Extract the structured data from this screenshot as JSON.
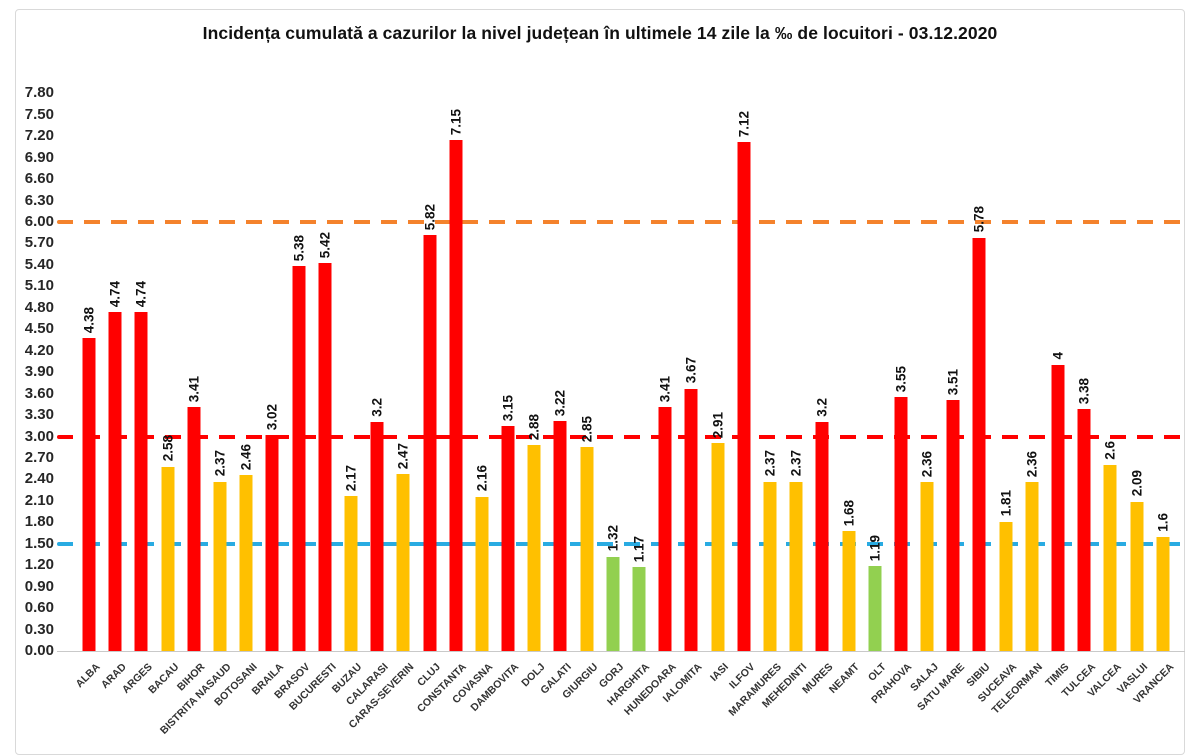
{
  "title": "Incidența cumulată a cazurilor la nivel județean în ultimele 14 zile la ‰ de locuitori - 03.12.2020",
  "colors": {
    "red": "#FF0000",
    "yellow": "#FFC000",
    "green": "#92D050",
    "orange_line": "#F4822C",
    "red_line": "#FF0000",
    "blue_line": "#29ABE2",
    "axis_text": "#262626",
    "frame_border": "#d9d9d9"
  },
  "chart_data": {
    "type": "bar",
    "title": "Incidența cumulată a cazurilor la nivel județean în ultimele 14 zile la ‰ de locuitori - 03.12.2020",
    "xlabel": "",
    "ylabel": "",
    "ylim": [
      0,
      7.8
    ],
    "ytick_step": 0.3,
    "grid": "off",
    "legend": "none",
    "yticks": [
      "7.80",
      "7.50",
      "7.20",
      "6.90",
      "6.60",
      "6.30",
      "6.00",
      "5.70",
      "5.40",
      "5.10",
      "4.80",
      "4.50",
      "4.20",
      "3.90",
      "3.60",
      "3.30",
      "3.00",
      "2.70",
      "2.40",
      "2.10",
      "1.80",
      "1.50",
      "1.20",
      "0.90",
      "0.60",
      "0.30",
      "0.00"
    ],
    "categories": [
      "ALBA",
      "ARAD",
      "ARGES",
      "BACAU",
      "BIHOR",
      "BISTRITA NASAUD",
      "BOTOSANI",
      "BRAILA",
      "BRASOV",
      "BUCURESTI",
      "BUZAU",
      "CALARASI",
      "CARAS-SEVERIN",
      "CLUJ",
      "CONSTANTA",
      "COVASNA",
      "DAMBOVITA",
      "DOLJ",
      "GALATI",
      "GIURGIU",
      "GORJ",
      "HARGHITA",
      "HUNEDOARA",
      "IALOMITA",
      "IASI",
      "ILFOV",
      "MARAMURES",
      "MEHEDINTI",
      "MURES",
      "NEAMT",
      "OLT",
      "PRAHOVA",
      "SALAJ",
      "SATU MARE",
      "SIBIU",
      "SUCEAVA",
      "TELEORMAN",
      "TIMIS",
      "TULCEA",
      "VALCEA",
      "VASLUI",
      "VRANCEA"
    ],
    "values": [
      4.38,
      4.74,
      4.74,
      2.58,
      3.41,
      2.37,
      2.46,
      3.02,
      5.38,
      5.42,
      2.17,
      3.2,
      2.47,
      5.82,
      7.15,
      2.16,
      3.15,
      2.88,
      3.22,
      2.85,
      1.32,
      1.17,
      3.41,
      3.67,
      2.91,
      7.12,
      2.37,
      2.37,
      3.2,
      1.68,
      1.19,
      3.55,
      2.36,
      3.51,
      5.78,
      1.81,
      2.36,
      4,
      3.38,
      2.6,
      2.09,
      1.6
    ],
    "value_labels": [
      "4.38",
      "4.74",
      "4.74",
      "2.58",
      "3.41",
      "2.37",
      "2.46",
      "3.02",
      "5.38",
      "5.42",
      "2.17",
      "3.2",
      "2.47",
      "5.82",
      "7.15",
      "2.16",
      "3.15",
      "2.88",
      "3.22",
      "2.85",
      "1.32",
      "1.17",
      "3.41",
      "3.67",
      "2.91",
      "7.12",
      "2.37",
      "2.37",
      "3.2",
      "1.68",
      "1.19",
      "3.55",
      "2.36",
      "3.51",
      "5.78",
      "1.81",
      "2.36",
      "4",
      "3.38",
      "2.6",
      "2.09",
      "1.6"
    ],
    "bar_levels": [
      "red",
      "red",
      "red",
      "yellow",
      "red",
      "yellow",
      "yellow",
      "red",
      "red",
      "red",
      "yellow",
      "red",
      "yellow",
      "red",
      "red",
      "yellow",
      "red",
      "yellow",
      "red",
      "yellow",
      "green",
      "green",
      "red",
      "red",
      "yellow",
      "red",
      "yellow",
      "yellow",
      "red",
      "yellow",
      "green",
      "red",
      "yellow",
      "red",
      "red",
      "yellow",
      "yellow",
      "red",
      "red",
      "yellow",
      "yellow",
      "yellow"
    ],
    "reference_lines": [
      {
        "value": 6.0,
        "color": "#F4822C",
        "style": "dashed",
        "name": "threshold-6"
      },
      {
        "value": 3.0,
        "color": "#FF0000",
        "style": "dashed",
        "name": "threshold-3"
      },
      {
        "value": 1.5,
        "color": "#29ABE2",
        "style": "dashed",
        "name": "threshold-1.5"
      }
    ]
  }
}
